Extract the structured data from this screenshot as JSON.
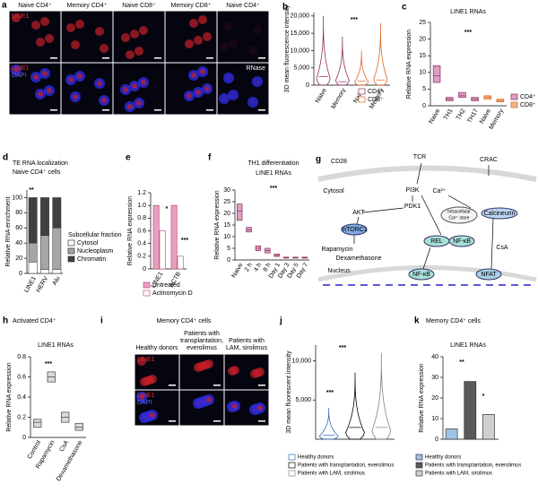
{
  "chart_data": [
    {
      "type": "violin",
      "panel": "b",
      "ylabel": "3D mean fluorescence intensity",
      "categories": [
        "Naive",
        "Memory",
        "Naive",
        "Memory"
      ],
      "series": [
        {
          "name": "CD4⁺",
          "color": "#8e2b5c",
          "values": [
            2500,
            1000,
            null,
            null
          ],
          "max": [
            20000,
            14000,
            null,
            null
          ]
        },
        {
          "name": "CD8⁺",
          "color": "#d9641e",
          "values": [
            null,
            null,
            1200,
            1500
          ],
          "max": [
            null,
            null,
            10000,
            18000
          ]
        }
      ],
      "ylim": [
        0,
        21000
      ],
      "yticks": [
        0,
        {
          "value": 5000,
          "label": "5,000"
        },
        {
          "value": 10000,
          "label": "10,000"
        },
        {
          "value": 15000,
          "label": "15,000"
        },
        {
          "value": 20000,
          "label": "20,000"
        }
      ],
      "annotations": [
        "***"
      ]
    },
    {
      "type": "box",
      "panel": "c",
      "title": [
        "LINE1 RNAs"
      ],
      "ylabel": "Relative RNA expression",
      "categories": [
        "Naive",
        "TH1",
        "TH2",
        "TH17",
        "Naive",
        "Memory"
      ],
      "series": [
        {
          "name": "CD4⁺",
          "color": "#d9a0c4",
          "edgecolor": "#8e2b5c",
          "values": [
            9,
            2,
            3,
            2,
            null,
            null
          ],
          "q1": [
            7,
            1.5,
            2.5,
            1.5,
            null,
            null
          ],
          "q3": [
            12,
            2.5,
            4,
            2.5,
            null,
            null
          ]
        },
        {
          "name": "CD8⁺",
          "color": "#f2b48c",
          "edgecolor": "#d9641e",
          "values": [
            null,
            null,
            null,
            null,
            2.5,
            1.5
          ],
          "q1": [
            null,
            null,
            null,
            null,
            2,
            1.2
          ],
          "q3": [
            null,
            null,
            null,
            null,
            3,
            2
          ]
        }
      ],
      "ylim": [
        0,
        25
      ],
      "yticks": [
        0,
        5,
        10,
        15,
        20,
        25
      ],
      "annotations": [
        "***"
      ]
    },
    {
      "type": "stacked_bar",
      "panel": "d",
      "title": [
        "TE RNA localization",
        "Naive CD4⁺ cells"
      ],
      "ylabel": "Relative RNA enrichment",
      "categories": [
        "LINE1",
        "HERV",
        "Alu"
      ],
      "legend_title": "Subcellular fraction",
      "series": [
        {
          "name": "Cytosol",
          "color": "#ffffff",
          "values": [
            15,
            5,
            5
          ]
        },
        {
          "name": "Nucleoplasm",
          "color": "#a6a6a6",
          "values": [
            25,
            45,
            55
          ]
        },
        {
          "name": "Chromatin",
          "color": "#404040",
          "values": [
            60,
            50,
            40
          ]
        }
      ],
      "ylim": [
        0,
        110
      ],
      "yticks": [
        0,
        20,
        40,
        60,
        80,
        100
      ],
      "annotations": [
        "**"
      ]
    },
    {
      "type": "bar",
      "panel": "e",
      "ylabel": "Relative RNA expression",
      "categories": [
        "LINE1",
        "ACTB"
      ],
      "series": [
        {
          "name": "Untreated",
          "color": "#e8a0c0",
          "values": [
            1,
            1
          ]
        },
        {
          "name": "Actinomycin D",
          "color": "#ffffff",
          "values": [
            0.6,
            0.2
          ]
        }
      ],
      "edgecolor": "#c0507f",
      "ylim": [
        0,
        1.2
      ],
      "yticks": [
        0,
        0.2,
        0.4,
        0.6,
        0.8,
        {
          "value": 1,
          "label": "1.0"
        },
        1.2
      ],
      "annotations": [
        "***",
        "*"
      ]
    },
    {
      "type": "box",
      "panel": "f",
      "title": [
        "TH1 differentiation",
        "LINE1 RNAs"
      ],
      "ylabel": "Relative RNA expression",
      "categories": [
        "Naive",
        "2 h",
        "4 h",
        "8 h",
        "Day 1",
        "Day 3",
        "Day 5",
        "Day 7"
      ],
      "color": "#d9a0c4",
      "edgecolor": "#8e2b5c",
      "values": [
        21,
        13,
        5,
        4,
        2,
        1,
        1,
        1
      ],
      "q1": [
        17,
        12,
        4,
        3,
        1.5,
        0.8,
        0.8,
        0.8
      ],
      "q3": [
        24,
        14,
        6,
        5,
        2.5,
        1.2,
        1.2,
        1.2
      ],
      "ylim": [
        0,
        30
      ],
      "yticks": [
        0,
        5,
        10,
        15,
        20,
        25,
        30
      ],
      "annotations": [
        "***"
      ]
    },
    {
      "type": "box",
      "panel": "h",
      "title": [
        "Activated CD4⁺",
        "LINE1 RNAs"
      ],
      "ylabel": "Relative RNA expression",
      "categories": [
        "Control",
        "Rapamycin",
        "CsA",
        "Dexamethasone"
      ],
      "color": "#d9d9d9",
      "edgecolor": "#404040",
      "values": [
        0.15,
        0.6,
        0.2,
        0.1
      ],
      "q1": [
        0.1,
        0.55,
        0.15,
        0.07
      ],
      "q3": [
        0.18,
        0.65,
        0.25,
        0.14
      ],
      "ylim": [
        0,
        0.8
      ],
      "yticks": [
        0,
        0.2,
        0.4,
        0.6,
        0.8
      ],
      "annotations": [
        "***"
      ]
    },
    {
      "type": "violin",
      "panel": "j",
      "ylabel": "3D mean fluorescent intensity",
      "categories": [
        null,
        null,
        null
      ],
      "series": [
        {
          "name": "Healthy donors",
          "color": "#2f6db5",
          "values": [
            500,
            null,
            null
          ],
          "max": [
            4000,
            null,
            null
          ]
        },
        {
          "name": "Patients with transplantation, everolimus",
          "color": "#000000",
          "values": [
            null,
            1500,
            null
          ],
          "max": [
            null,
            8500,
            null
          ]
        },
        {
          "name": "Patients with LAM, sirolimus",
          "color": "#808080",
          "values": [
            null,
            null,
            1500
          ],
          "max": [
            null,
            null,
            11000
          ]
        }
      ],
      "ylim": [
        0,
        12000
      ],
      "yticks": [
        {
          "value": 5000,
          "label": "5,000"
        },
        {
          "value": 10000,
          "label": "10,000"
        }
      ],
      "annotations": [
        "***",
        "***"
      ]
    },
    {
      "type": "bar",
      "panel": "k",
      "title": [
        "Memory CD4⁺ cells",
        "LINE1 RNAs"
      ],
      "ylabel": "Relative RNA expression",
      "categories": [
        null,
        null,
        null
      ],
      "series": [
        {
          "name": "Healthy donors",
          "color": "#9dc3e6",
          "values": [
            5,
            null,
            null
          ]
        },
        {
          "name": "Patients with transplantation, everolimus",
          "color": "#595959",
          "values": [
            null,
            28,
            null
          ]
        },
        {
          "name": "Patients with LAM, sirolimus",
          "color": "#d0d0d0",
          "values": [
            null,
            null,
            12
          ]
        }
      ],
      "edgecolor": "#333333",
      "ylim": [
        0,
        40
      ],
      "yticks": [
        0,
        10,
        20,
        30,
        40
      ],
      "annotations": [
        "**",
        "*"
      ]
    }
  ],
  "images": [
    {
      "panel": "a",
      "columns": [
        [
          "Naive CD4⁺"
        ],
        [
          "Memory CD4⁺"
        ],
        [
          "Naive CD8⁺"
        ],
        [
          "Memory CD8⁺"
        ],
        [
          "Naive CD4⁺"
        ]
      ],
      "rows": [
        [
          "LINE1"
        ],
        [
          "LINE1",
          "DAPI"
        ]
      ],
      "note": "RNase"
    },
    {
      "panel": "i",
      "title": "Memory CD4⁺ cells",
      "columns": [
        [
          "Healthy donors"
        ],
        [
          "Patients with",
          "transplantation,",
          "everolimus"
        ],
        [
          "Patients with",
          "LAM, sirolimus"
        ]
      ],
      "rows": [
        [
          "LINE1"
        ],
        [
          "LINE1",
          "DAPI"
        ]
      ]
    }
  ],
  "diagram": {
    "panel": "g",
    "labels": [
      "CD28",
      "TCR",
      "CRAC",
      "Cytosol",
      "PI3K",
      "Ca²⁺",
      "PDK1",
      "AKT",
      "Intracellular",
      "Ca²⁺ store",
      "Calcineurin",
      "mTORC1",
      "Rapamycin",
      "REL",
      "NF-κB",
      "CsA",
      "Dexamethasone",
      "Nucleus",
      "NF-κB",
      "NFAT"
    ]
  }
}
